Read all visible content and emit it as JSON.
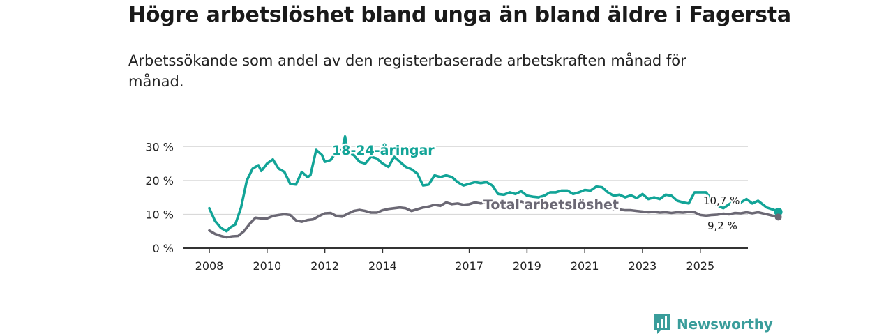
{
  "title": "Högre arbetslöshet bland unga än bland äldre i Fagersta",
  "subtitle": "Arbetssökande som andel av den registerbaserade arbetskraften månad för månad.",
  "brand": "Newsworthy",
  "colors": {
    "youth": "#12a497",
    "total": "#6b6874",
    "grid": "#d9d9d9",
    "axis": "#333333",
    "brand": "#3a9d9b"
  },
  "chart_data": {
    "type": "line",
    "title": "Högre arbetslöshet bland unga än bland äldre i Fagersta",
    "xlabel": "",
    "ylabel": "",
    "xlim": [
      2007.4,
      2026.9
    ],
    "ylim": [
      0,
      35
    ],
    "y_ticks": [
      0,
      10,
      20,
      30
    ],
    "y_tick_labels": [
      "0 %",
      "10 %",
      "20 %",
      "30 %"
    ],
    "x_ticks": [
      2008,
      2010,
      2012,
      2014,
      2017,
      2019,
      2021,
      2023,
      2025
    ],
    "x_tick_labels": [
      "2008",
      "2010",
      "2012",
      "2014",
      "2017",
      "2019",
      "2021",
      "2023",
      "2025"
    ],
    "grid": "horizontal",
    "series": [
      {
        "name": "18-24-åringar",
        "label": "18-24-åringar",
        "end_label": "10,7 %",
        "end_value": 10.7,
        "points": [
          [
            2008.0,
            11.8
          ],
          [
            2008.2,
            8.0
          ],
          [
            2008.4,
            6.0
          ],
          [
            2008.6,
            5.0
          ],
          [
            2008.7,
            6.0
          ],
          [
            2008.9,
            7.0
          ],
          [
            2009.1,
            12.0
          ],
          [
            2009.3,
            20.0
          ],
          [
            2009.5,
            23.5
          ],
          [
            2009.7,
            24.5
          ],
          [
            2009.8,
            22.8
          ],
          [
            2010.0,
            25.0
          ],
          [
            2010.2,
            26.2
          ],
          [
            2010.4,
            23.5
          ],
          [
            2010.6,
            22.5
          ],
          [
            2010.8,
            19.0
          ],
          [
            2011.0,
            18.8
          ],
          [
            2011.2,
            22.5
          ],
          [
            2011.4,
            21.0
          ],
          [
            2011.5,
            21.5
          ],
          [
            2011.7,
            29.0
          ],
          [
            2011.9,
            27.5
          ],
          [
            2012.0,
            25.5
          ],
          [
            2012.2,
            26.0
          ],
          [
            2012.4,
            28.5
          ],
          [
            2012.6,
            29.0
          ],
          [
            2012.7,
            33.0
          ],
          [
            2012.8,
            28.0
          ],
          [
            2013.0,
            27.5
          ],
          [
            2013.2,
            25.5
          ],
          [
            2013.4,
            25.0
          ],
          [
            2013.6,
            27.0
          ],
          [
            2013.8,
            26.5
          ],
          [
            2014.0,
            25.0
          ],
          [
            2014.2,
            24.0
          ],
          [
            2014.4,
            27.0
          ],
          [
            2014.6,
            25.5
          ],
          [
            2014.8,
            24.0
          ],
          [
            2015.0,
            23.3
          ],
          [
            2015.2,
            22.0
          ],
          [
            2015.4,
            18.5
          ],
          [
            2015.6,
            18.8
          ],
          [
            2015.8,
            21.5
          ],
          [
            2016.0,
            21.0
          ],
          [
            2016.2,
            21.5
          ],
          [
            2016.4,
            21.0
          ],
          [
            2016.6,
            19.5
          ],
          [
            2016.8,
            18.5
          ],
          [
            2017.0,
            19.0
          ],
          [
            2017.2,
            19.5
          ],
          [
            2017.4,
            19.2
          ],
          [
            2017.6,
            19.5
          ],
          [
            2017.8,
            18.5
          ],
          [
            2018.0,
            16.0
          ],
          [
            2018.2,
            15.8
          ],
          [
            2018.4,
            16.5
          ],
          [
            2018.6,
            16.0
          ],
          [
            2018.8,
            16.8
          ],
          [
            2019.0,
            15.5
          ],
          [
            2019.2,
            15.2
          ],
          [
            2019.4,
            15.0
          ],
          [
            2019.6,
            15.5
          ],
          [
            2019.8,
            16.5
          ],
          [
            2020.0,
            16.5
          ],
          [
            2020.2,
            17.0
          ],
          [
            2020.4,
            17.0
          ],
          [
            2020.6,
            16.0
          ],
          [
            2020.8,
            16.5
          ],
          [
            2021.0,
            17.2
          ],
          [
            2021.2,
            17.0
          ],
          [
            2021.4,
            18.2
          ],
          [
            2021.6,
            18.0
          ],
          [
            2021.8,
            16.5
          ],
          [
            2022.0,
            15.5
          ],
          [
            2022.2,
            15.8
          ],
          [
            2022.4,
            15.0
          ],
          [
            2022.6,
            15.6
          ],
          [
            2022.8,
            14.8
          ],
          [
            2023.0,
            16.0
          ],
          [
            2023.2,
            14.5
          ],
          [
            2023.4,
            15.0
          ],
          [
            2023.6,
            14.5
          ],
          [
            2023.8,
            15.8
          ],
          [
            2024.0,
            15.5
          ],
          [
            2024.2,
            14.0
          ],
          [
            2024.4,
            13.5
          ],
          [
            2024.6,
            13.2
          ],
          [
            2024.8,
            16.5
          ],
          [
            2025.0,
            16.5
          ],
          [
            2025.2,
            16.5
          ],
          [
            2025.4,
            14.0
          ],
          [
            2025.6,
            12.5
          ],
          [
            2025.8,
            11.8
          ],
          [
            2026.0,
            13.0
          ],
          [
            2026.2,
            14.0
          ],
          [
            2026.4,
            13.5
          ],
          [
            2026.6,
            14.5
          ],
          [
            2026.8,
            13.2
          ],
          [
            2027.0,
            14.0
          ],
          [
            2027.3,
            12.0
          ],
          [
            2027.55,
            11.3
          ],
          [
            2027.7,
            10.7
          ]
        ]
      },
      {
        "name": "Total arbetslöshet",
        "label": "Total arbetslöshet",
        "end_label": "9,2 %",
        "end_value": 9.2,
        "points": [
          [
            2008.0,
            5.2
          ],
          [
            2008.2,
            4.2
          ],
          [
            2008.4,
            3.6
          ],
          [
            2008.6,
            3.2
          ],
          [
            2008.8,
            3.5
          ],
          [
            2009.0,
            3.6
          ],
          [
            2009.2,
            5.0
          ],
          [
            2009.4,
            7.2
          ],
          [
            2009.6,
            9.0
          ],
          [
            2009.8,
            8.8
          ],
          [
            2010.0,
            8.8
          ],
          [
            2010.2,
            9.5
          ],
          [
            2010.4,
            9.8
          ],
          [
            2010.6,
            10.0
          ],
          [
            2010.8,
            9.8
          ],
          [
            2011.0,
            8.2
          ],
          [
            2011.2,
            7.8
          ],
          [
            2011.4,
            8.3
          ],
          [
            2011.6,
            8.5
          ],
          [
            2011.8,
            9.5
          ],
          [
            2012.0,
            10.3
          ],
          [
            2012.2,
            10.4
          ],
          [
            2012.4,
            9.5
          ],
          [
            2012.6,
            9.3
          ],
          [
            2012.8,
            10.2
          ],
          [
            2013.0,
            11.0
          ],
          [
            2013.2,
            11.3
          ],
          [
            2013.4,
            11.0
          ],
          [
            2013.6,
            10.5
          ],
          [
            2013.8,
            10.5
          ],
          [
            2014.0,
            11.2
          ],
          [
            2014.2,
            11.6
          ],
          [
            2014.4,
            11.8
          ],
          [
            2014.6,
            12.0
          ],
          [
            2014.8,
            11.8
          ],
          [
            2015.0,
            11.0
          ],
          [
            2015.2,
            11.5
          ],
          [
            2015.4,
            12.0
          ],
          [
            2015.6,
            12.3
          ],
          [
            2015.8,
            12.8
          ],
          [
            2016.0,
            12.5
          ],
          [
            2016.2,
            13.5
          ],
          [
            2016.4,
            13.0
          ],
          [
            2016.6,
            13.2
          ],
          [
            2016.8,
            12.8
          ],
          [
            2017.0,
            13.0
          ],
          [
            2017.2,
            13.5
          ],
          [
            2017.4,
            13.2
          ],
          [
            2017.6,
            13.6
          ],
          [
            2017.8,
            13.8
          ],
          [
            2018.0,
            13.0
          ],
          [
            2018.2,
            12.6
          ],
          [
            2018.4,
            12.8
          ],
          [
            2018.6,
            13.2
          ],
          [
            2018.8,
            13.8
          ],
          [
            2019.0,
            13.2
          ],
          [
            2019.2,
            12.5
          ],
          [
            2019.4,
            12.8
          ],
          [
            2019.6,
            13.5
          ],
          [
            2019.8,
            13.2
          ],
          [
            2020.0,
            12.8
          ],
          [
            2020.2,
            12.3
          ],
          [
            2020.4,
            12.6
          ],
          [
            2020.6,
            12.2
          ],
          [
            2020.8,
            12.8
          ],
          [
            2021.0,
            12.5
          ],
          [
            2021.2,
            12.0
          ],
          [
            2021.4,
            12.3
          ],
          [
            2021.6,
            12.0
          ],
          [
            2021.8,
            11.8
          ],
          [
            2022.0,
            11.5
          ],
          [
            2022.2,
            11.4
          ],
          [
            2022.4,
            11.2
          ],
          [
            2022.6,
            11.2
          ],
          [
            2022.8,
            11.0
          ],
          [
            2023.0,
            10.8
          ],
          [
            2023.2,
            10.6
          ],
          [
            2023.4,
            10.7
          ],
          [
            2023.6,
            10.5
          ],
          [
            2023.8,
            10.6
          ],
          [
            2024.0,
            10.4
          ],
          [
            2024.2,
            10.6
          ],
          [
            2024.4,
            10.5
          ],
          [
            2024.6,
            10.7
          ],
          [
            2024.8,
            10.6
          ],
          [
            2025.0,
            9.8
          ],
          [
            2025.2,
            9.6
          ],
          [
            2025.4,
            9.8
          ],
          [
            2025.6,
            9.9
          ],
          [
            2025.8,
            10.2
          ],
          [
            2026.0,
            10.0
          ],
          [
            2026.2,
            10.4
          ],
          [
            2026.4,
            10.3
          ],
          [
            2026.6,
            10.6
          ],
          [
            2026.8,
            10.3
          ],
          [
            2027.0,
            10.6
          ],
          [
            2027.3,
            10.0
          ],
          [
            2027.55,
            9.5
          ],
          [
            2027.7,
            9.2
          ]
        ]
      }
    ]
  }
}
